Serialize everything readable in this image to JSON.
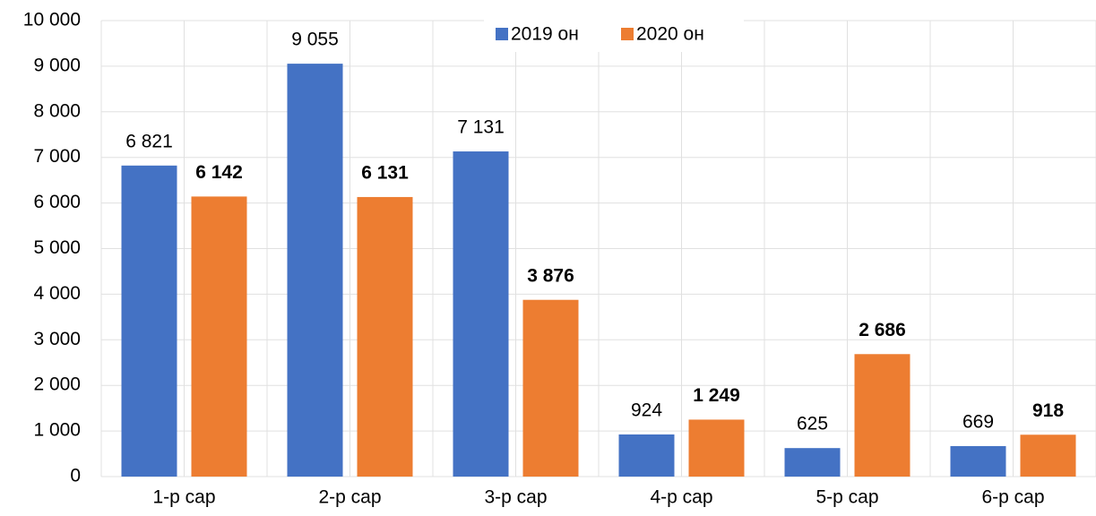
{
  "chart_data": {
    "type": "bar",
    "categories": [
      "1-р сар",
      "2-р сар",
      "3-р сар",
      "4-р сар",
      "5-р сар",
      "6-р сар"
    ],
    "series": [
      {
        "name": "2019 он",
        "color": "#4472c4",
        "value_label_color": "#000000",
        "values": [
          6821,
          9055,
          7131,
          924,
          625,
          669
        ],
        "value_labels": [
          "6 821",
          "9 055",
          "7 131",
          "924",
          "625",
          "669"
        ]
      },
      {
        "name": "2020 он",
        "color": "#ed7d31",
        "value_label_color": "#c00000",
        "values": [
          6142,
          6131,
          3876,
          1249,
          2686,
          918
        ],
        "value_labels": [
          "6 142",
          "6 131",
          "3 876",
          "1 249",
          "2 686",
          "918"
        ]
      }
    ],
    "ylim": [
      0,
      10000
    ],
    "yticks": [
      0,
      {
        "value": 1000,
        "label": "1 000"
      },
      {
        "value": 2000,
        "label": "2 000"
      },
      {
        "value": 3000,
        "label": "3 000"
      },
      {
        "value": 4000,
        "label": "4 000"
      },
      {
        "value": 5000,
        "label": "5 000"
      },
      {
        "value": 6000,
        "label": "6 000"
      },
      {
        "value": 7000,
        "label": "7 000"
      },
      {
        "value": 8000,
        "label": "8 000"
      },
      {
        "value": 9000,
        "label": "9 000"
      },
      {
        "value": 10000,
        "label": "10 000"
      }
    ],
    "grid": true,
    "legend": "top"
  }
}
